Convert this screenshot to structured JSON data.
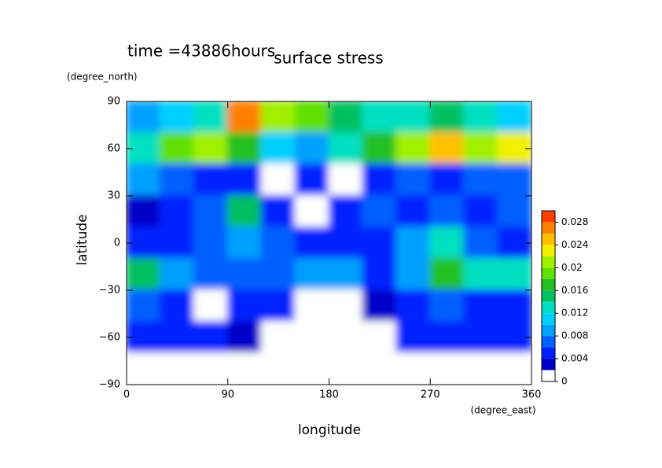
{
  "chart_data": {
    "type": "contour",
    "title": "surface stress",
    "subtitle": "time =43886hours",
    "x_label": "longitude",
    "x_unit": "(degree_east)",
    "y_label": "latitude",
    "y_unit": "(degree_north)",
    "xlim": [
      0,
      360
    ],
    "xticks": [
      0,
      90,
      180,
      270,
      360
    ],
    "ylim": [
      -90,
      90
    ],
    "yticks": [
      {
        "value": -90,
        "label": "−90"
      },
      {
        "value": -60,
        "label": "−60"
      },
      {
        "value": -30,
        "label": "−30"
      },
      0,
      30,
      60,
      90
    ],
    "x": [
      15,
      45,
      75,
      105,
      135,
      165,
      195,
      225,
      255,
      285,
      315,
      345
    ],
    "y": [
      80,
      60,
      40,
      20,
      0,
      -20,
      -40,
      -60,
      -80
    ],
    "values": [
      [
        0.008,
        0.01,
        0.012,
        0.026,
        0.02,
        0.018,
        0.014,
        0.012,
        0.012,
        0.014,
        0.012,
        0.01
      ],
      [
        0.012,
        0.018,
        0.02,
        0.016,
        0.01,
        0.008,
        0.012,
        0.016,
        0.02,
        0.024,
        0.02,
        0.022
      ],
      [
        0.008,
        0.006,
        0.004,
        0.004,
        0,
        0.004,
        0,
        0.004,
        0.006,
        0.004,
        0.006,
        0.006
      ],
      [
        0.002,
        0.004,
        0.006,
        0.014,
        0.004,
        0,
        0.004,
        0.006,
        0.004,
        0.006,
        0.004,
        0.006
      ],
      [
        0.004,
        0.004,
        0.006,
        0.008,
        0.006,
        0.004,
        0.004,
        0.004,
        0.008,
        0.012,
        0.006,
        0.004
      ],
      [
        0.014,
        0.008,
        0.006,
        0.006,
        0.006,
        0.008,
        0.008,
        0.004,
        0.008,
        0.016,
        0.012,
        0.012
      ],
      [
        0.006,
        0.004,
        0,
        0.004,
        0.004,
        0,
        0,
        0.002,
        0.004,
        0.006,
        0.004,
        0.004
      ],
      [
        0.004,
        0.004,
        0.004,
        0.002,
        0,
        0,
        0,
        0,
        0.004,
        0.004,
        0.004,
        0.004
      ],
      [
        0,
        0,
        0,
        0,
        0,
        0,
        0,
        0,
        0,
        0,
        0,
        0
      ]
    ],
    "colorbar": {
      "lim": [
        0,
        0.03
      ],
      "ticks": [
        0,
        0.004,
        0.008,
        0.012,
        0.016,
        0.02,
        0.024,
        0.028
      ],
      "colors": [
        "#ffffff",
        "#0000c8",
        "#0020ff",
        "#0060ff",
        "#00a0ff",
        "#00d0ff",
        "#00e0c0",
        "#00c060",
        "#20c020",
        "#60e000",
        "#a0f000",
        "#f0f000",
        "#ffc000",
        "#ff8000",
        "#ff4000"
      ]
    }
  }
}
